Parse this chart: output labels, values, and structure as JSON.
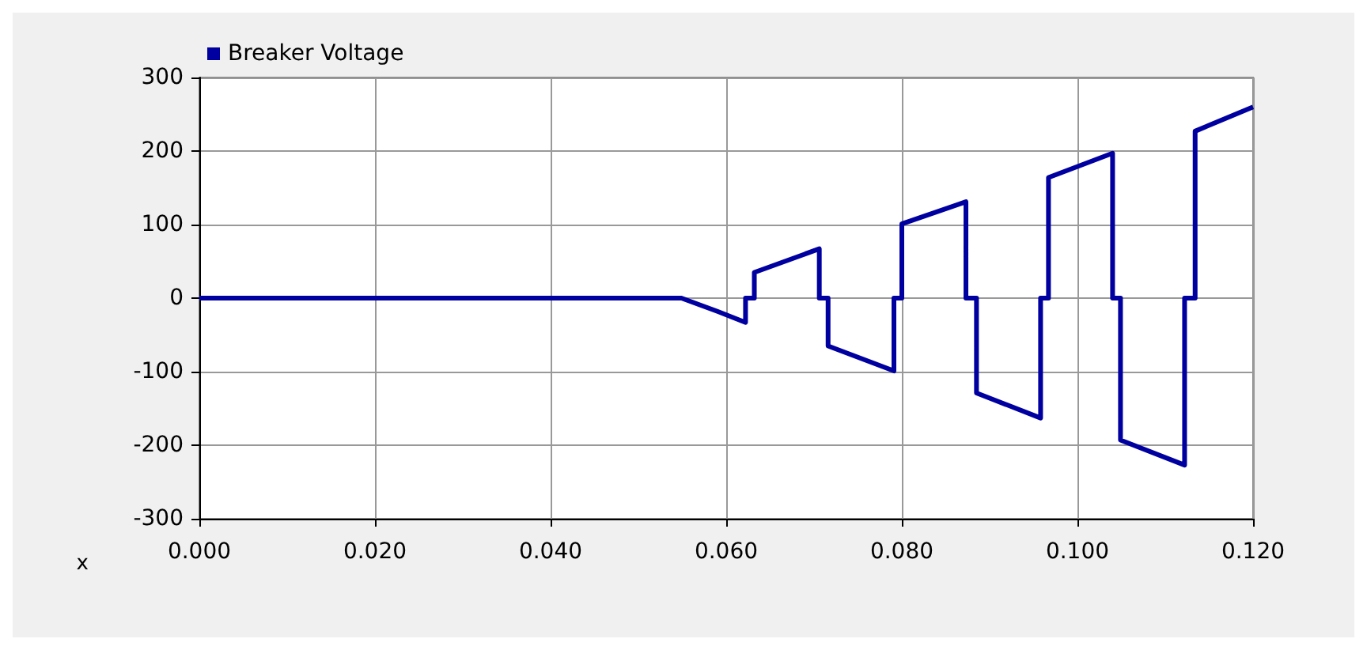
{
  "chart_data": {
    "type": "line",
    "xlabel": "x",
    "x": [
      0,
      0.0549,
      0.059,
      0.0622,
      0.0622,
      0.0632,
      0.0632,
      0.0706,
      0.0706,
      0.0716,
      0.0716,
      0.0791,
      0.0791,
      0.08,
      0.08,
      0.0873,
      0.0873,
      0.0885,
      0.0885,
      0.0958,
      0.0958,
      0.0967,
      0.0967,
      0.104,
      0.104,
      0.1049,
      0.1049,
      0.1122,
      0.1122,
      0.1134,
      0.1134,
      0.12
    ],
    "series": [
      {
        "name": "Breaker Voltage",
        "color": "#0000a0",
        "values": [
          0,
          0,
          -18,
          -33,
          0,
          0,
          35,
          67,
          0,
          0,
          -65,
          -99,
          0,
          0,
          101,
          131,
          0,
          0,
          -129,
          -163,
          0,
          0,
          164,
          197,
          0,
          0,
          -193,
          -227,
          0,
          0,
          227,
          260
        ]
      }
    ],
    "xlim": [
      0,
      0.12
    ],
    "xticks": [
      {
        "value": 0,
        "label": "0.000"
      },
      {
        "value": 0.02,
        "label": "0.020"
      },
      {
        "value": 0.04,
        "label": "0.040"
      },
      {
        "value": 0.06,
        "label": "0.060"
      },
      {
        "value": 0.08,
        "label": "0.080"
      },
      {
        "value": 0.1,
        "label": "0.100"
      },
      {
        "value": 0.12,
        "label": "0.120"
      }
    ],
    "ylim": [
      -300,
      300
    ],
    "yticks": [
      -300,
      -200,
      -100,
      0,
      100,
      200,
      300
    ],
    "grid": true,
    "legend": "top left",
    "marker": "none",
    "line_style": "solid"
  }
}
